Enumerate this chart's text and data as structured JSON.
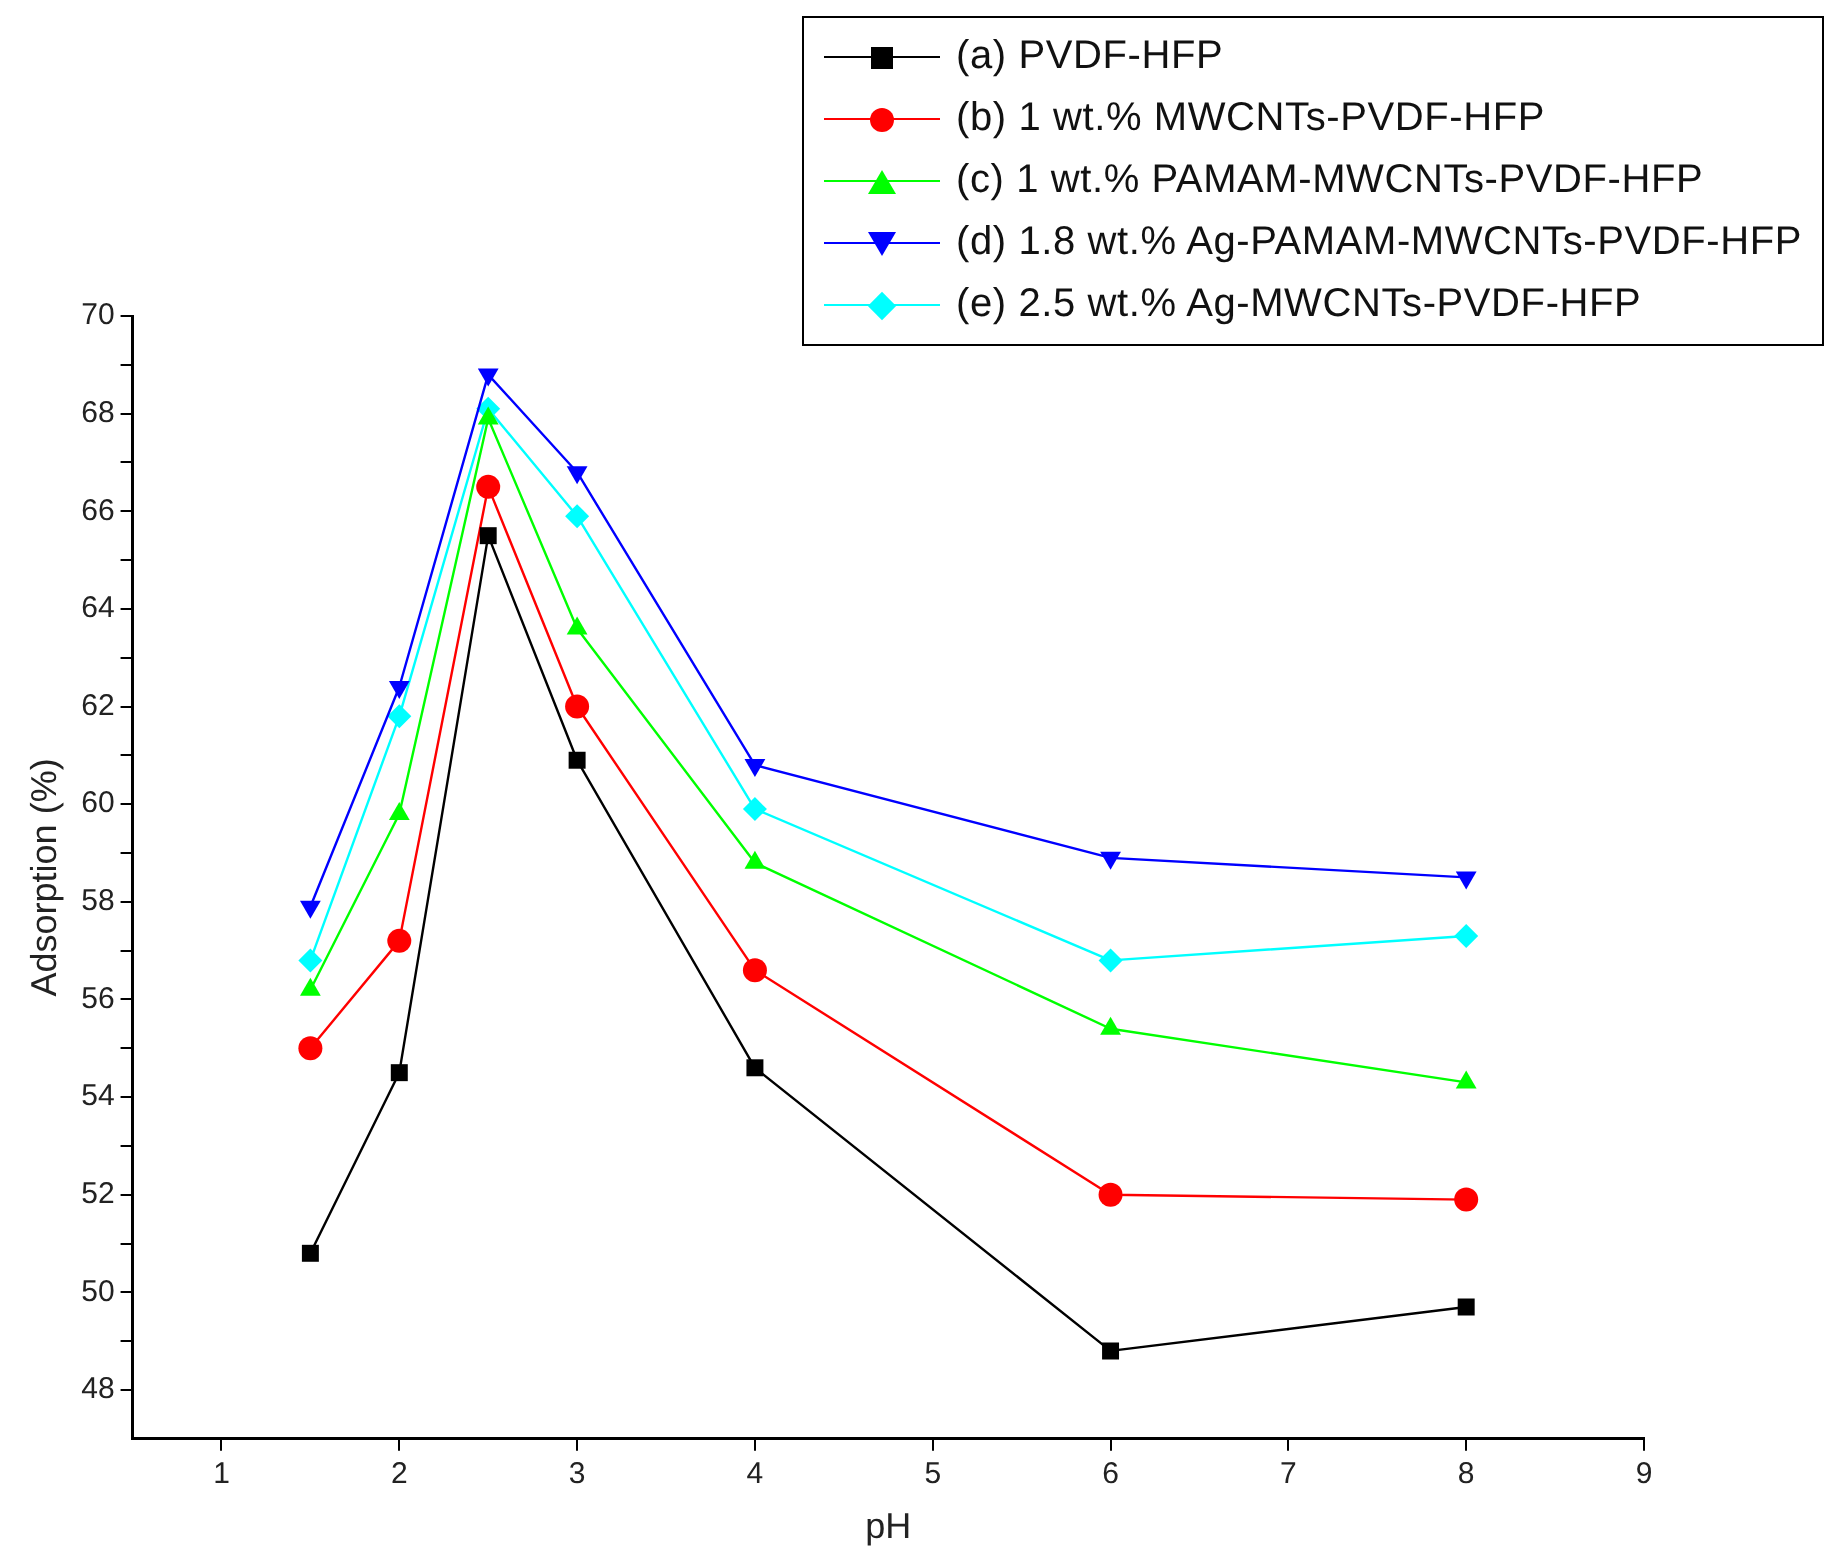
{
  "chart_data": {
    "type": "line",
    "xlabel": "pH",
    "ylabel": "Adsorption (%)",
    "x": [
      1.5,
      2,
      2.5,
      3,
      4,
      6,
      8
    ],
    "xlim": [
      0.5,
      9
    ],
    "xticks": [
      1,
      2,
      3,
      4,
      5,
      6,
      7,
      8,
      9
    ],
    "ylim": [
      47,
      70
    ],
    "yticks": [
      48,
      {
        "value": 49,
        "label": null
      },
      50,
      {
        "value": 51,
        "label": null
      },
      52,
      {
        "value": 53,
        "label": null
      },
      54,
      {
        "value": 55,
        "label": null
      },
      56,
      {
        "value": 57,
        "label": null
      },
      58,
      {
        "value": 59,
        "label": null
      },
      60,
      {
        "value": 61,
        "label": null
      },
      62,
      {
        "value": 63,
        "label": null
      },
      64,
      {
        "value": 65,
        "label": null
      },
      66,
      {
        "value": 67,
        "label": null
      },
      68,
      {
        "value": 69,
        "label": null
      },
      70
    ],
    "grid": false,
    "legend": "top right",
    "line_style": "solid",
    "series": [
      {
        "name": "(a) PVDF-HFP",
        "color": "#000000",
        "marker": "square",
        "values": [
          50.8,
          54.5,
          65.5,
          60.9,
          54.6,
          48.8,
          49.7
        ]
      },
      {
        "name": "(b) 1 wt.% MWCNTs-PVDF-HFP",
        "color": "#ff0000",
        "marker": "circle",
        "values": [
          55.0,
          57.2,
          66.5,
          62.0,
          56.6,
          52.0,
          51.9
        ]
      },
      {
        "name": "(c) 1 wt.% PAMAM-MWCNTs-PVDF-HFP",
        "color": "#00ff00",
        "marker": "triangle",
        "values": [
          56.2,
          59.8,
          67.9,
          63.6,
          58.8,
          55.4,
          54.3
        ]
      },
      {
        "name": "(d) 1.8 wt.% Ag-PAMAM-MWCNTs-PVDF-HFP",
        "color": "#0000ff",
        "marker": "triangle_down",
        "values": [
          57.9,
          62.4,
          68.8,
          66.8,
          60.8,
          58.9,
          58.5
        ]
      },
      {
        "name": "(e) 2.5 wt.% Ag-MWCNTs-PVDF-HFP",
        "color": "#00ffff",
        "marker": "diamond",
        "values": [
          56.8,
          61.8,
          68.1,
          65.9,
          59.9,
          56.8,
          57.3
        ]
      }
    ]
  }
}
